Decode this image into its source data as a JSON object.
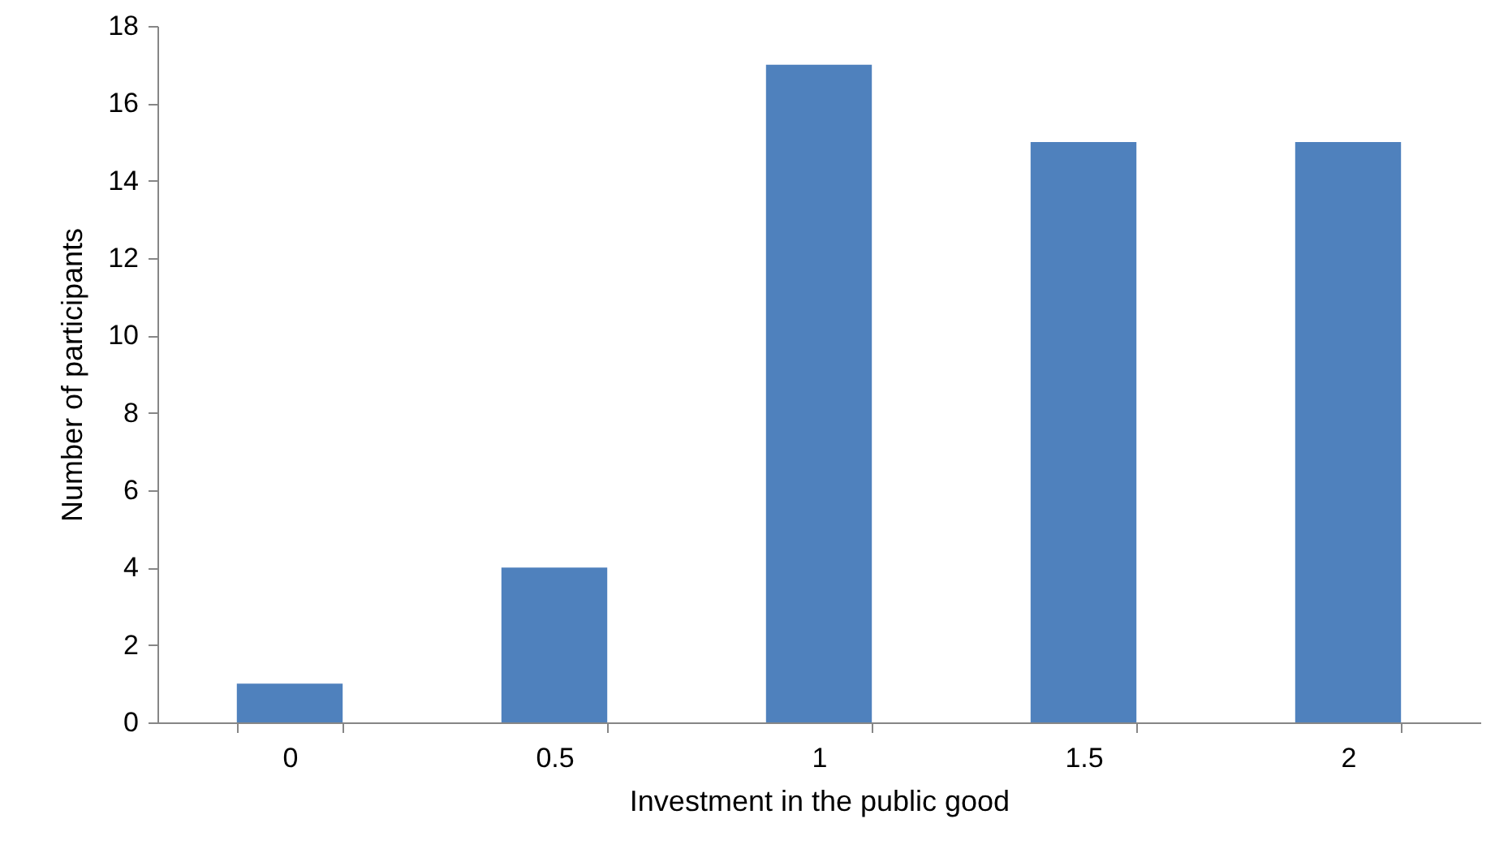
{
  "chart_data": {
    "type": "bar",
    "xlabel": "Investment in the public good",
    "ylabel": "Number of participants",
    "categories": [
      "0",
      "0.5",
      "1",
      "1.5",
      "2"
    ],
    "values": [
      1,
      4,
      17,
      15,
      15
    ],
    "color": "#4f81bd",
    "ylim": [
      0,
      18
    ],
    "yticks": [
      0,
      2,
      4,
      6,
      8,
      10,
      12,
      14,
      16,
      18
    ],
    "grid": false
  }
}
